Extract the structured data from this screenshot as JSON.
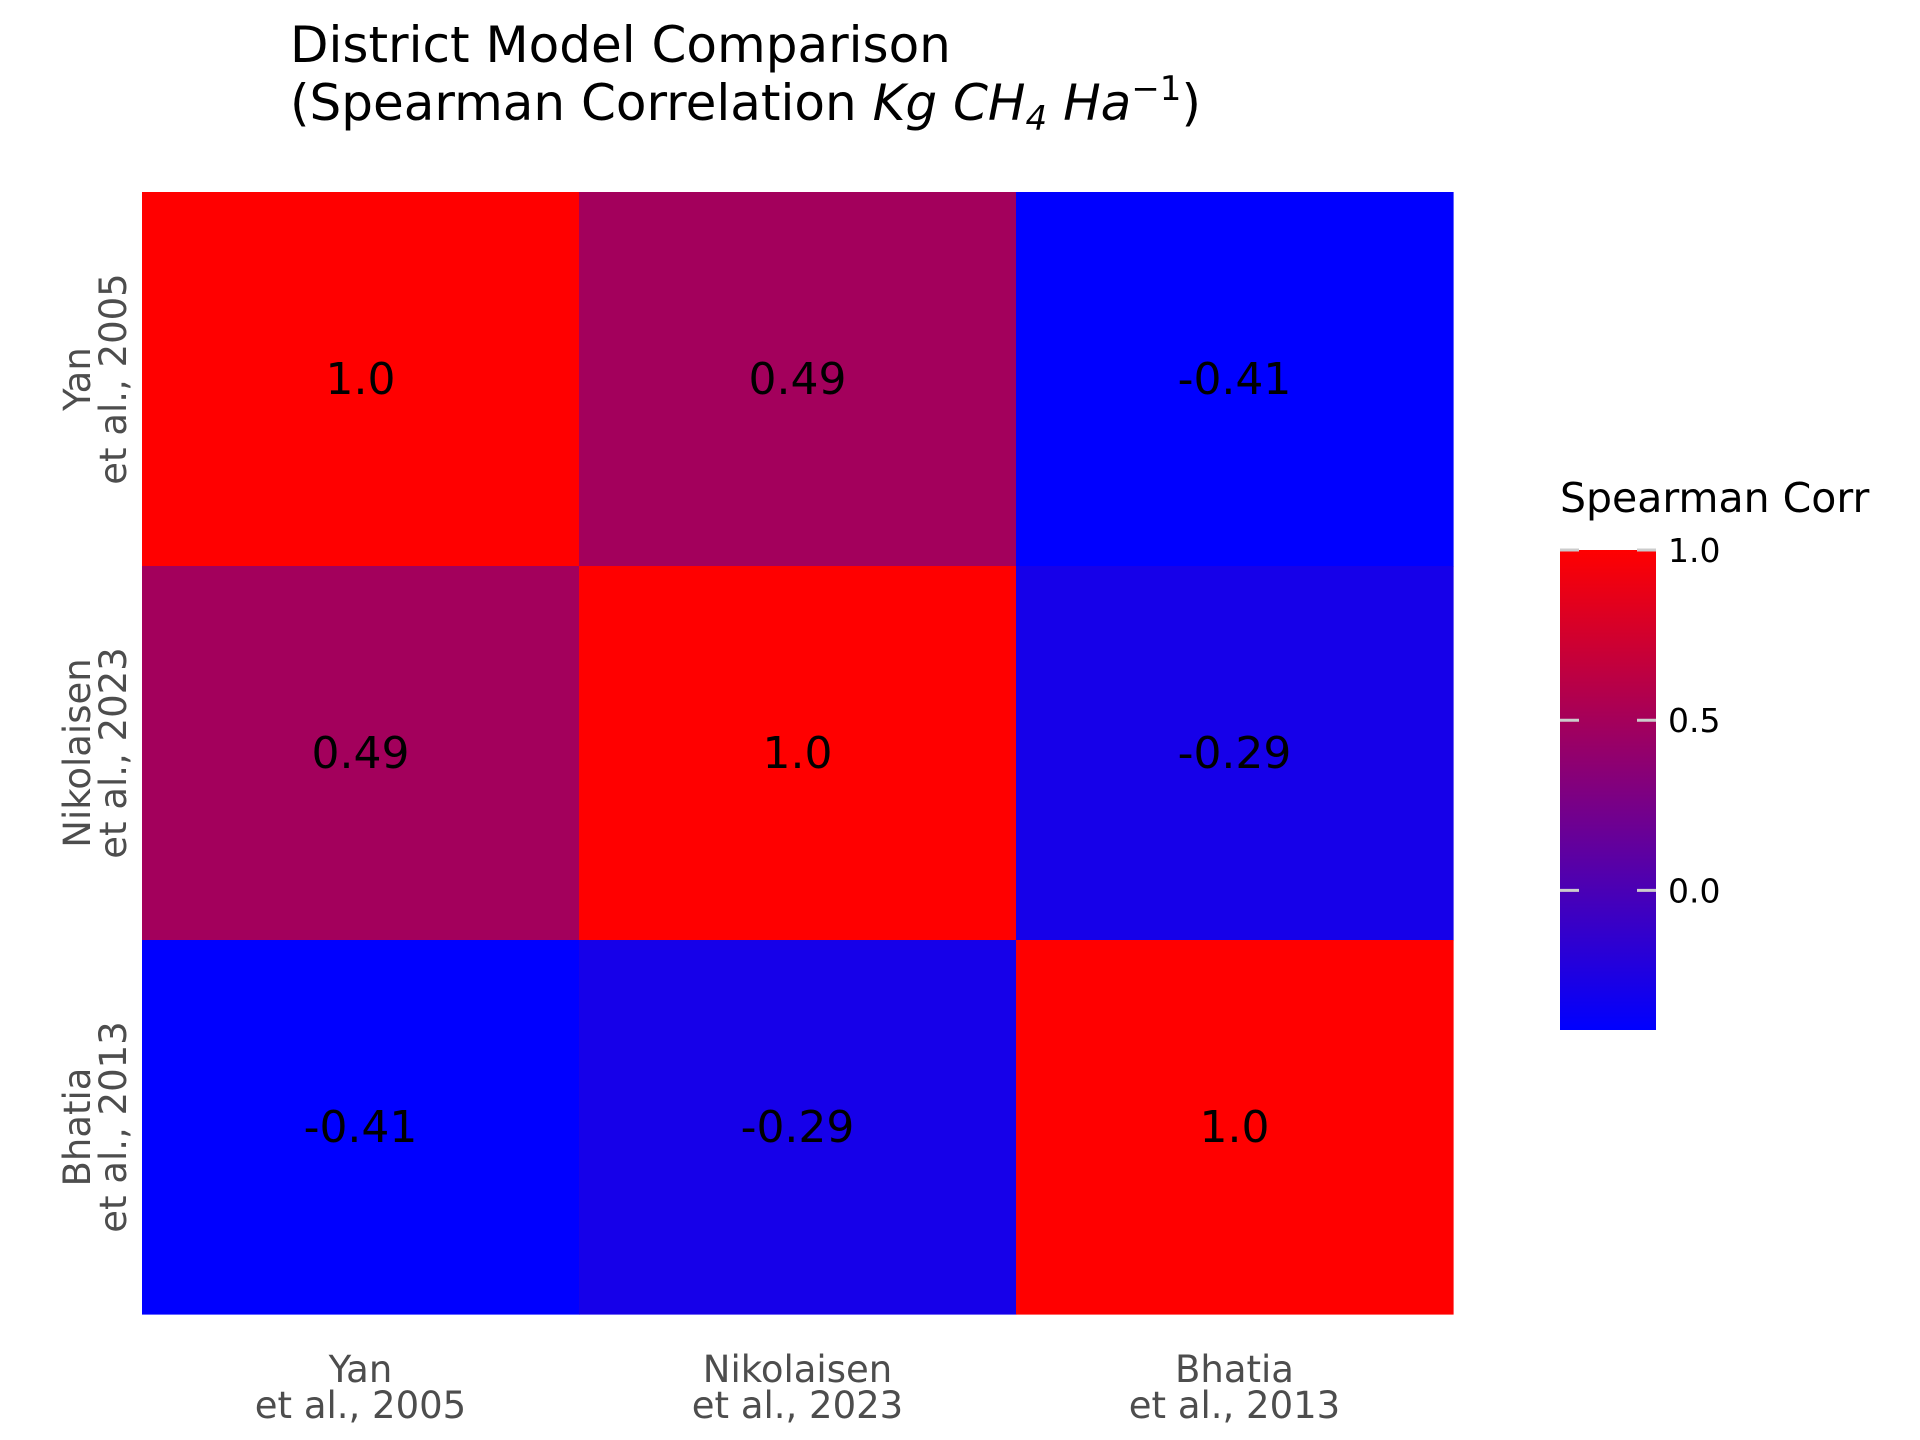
{
  "chart_data": {
    "type": "heatmap",
    "title": "District Model Comparison",
    "subtitle_parts": [
      "(Spearman Correlation ",
      "Kg CH",
      "4",
      " Ha",
      "−1",
      ")"
    ],
    "x_categories": [
      [
        "Yan",
        "et al., 2005"
      ],
      [
        "Nikolaisen",
        "et al., 2023"
      ],
      [
        "Bhatia",
        "et al., 2013"
      ]
    ],
    "y_categories": [
      [
        "Yan",
        "et al., 2005"
      ],
      [
        "Nikolaisen",
        "et al., 2023"
      ],
      [
        "Bhatia",
        "et al., 2013"
      ]
    ],
    "values": [
      [
        1.0,
        0.49,
        -0.41
      ],
      [
        0.49,
        1.0,
        -0.29
      ],
      [
        -0.41,
        -0.29,
        1.0
      ]
    ],
    "cell_labels": [
      [
        "1.0",
        "0.49",
        "-0.41"
      ],
      [
        "0.49",
        "1.0",
        "-0.29"
      ],
      [
        "-0.41",
        "-0.29",
        "1.0"
      ]
    ],
    "colorscale": {
      "low": "#0000ff",
      "high": "#ff0000",
      "min": -0.41,
      "max": 1.0
    },
    "legend": {
      "title": "Spearman Corr",
      "ticks": [
        1.0,
        0.5,
        0.0
      ],
      "tick_labels": [
        "1.0",
        "0.5",
        "0.0"
      ],
      "placement": "right"
    },
    "grid": false
  }
}
